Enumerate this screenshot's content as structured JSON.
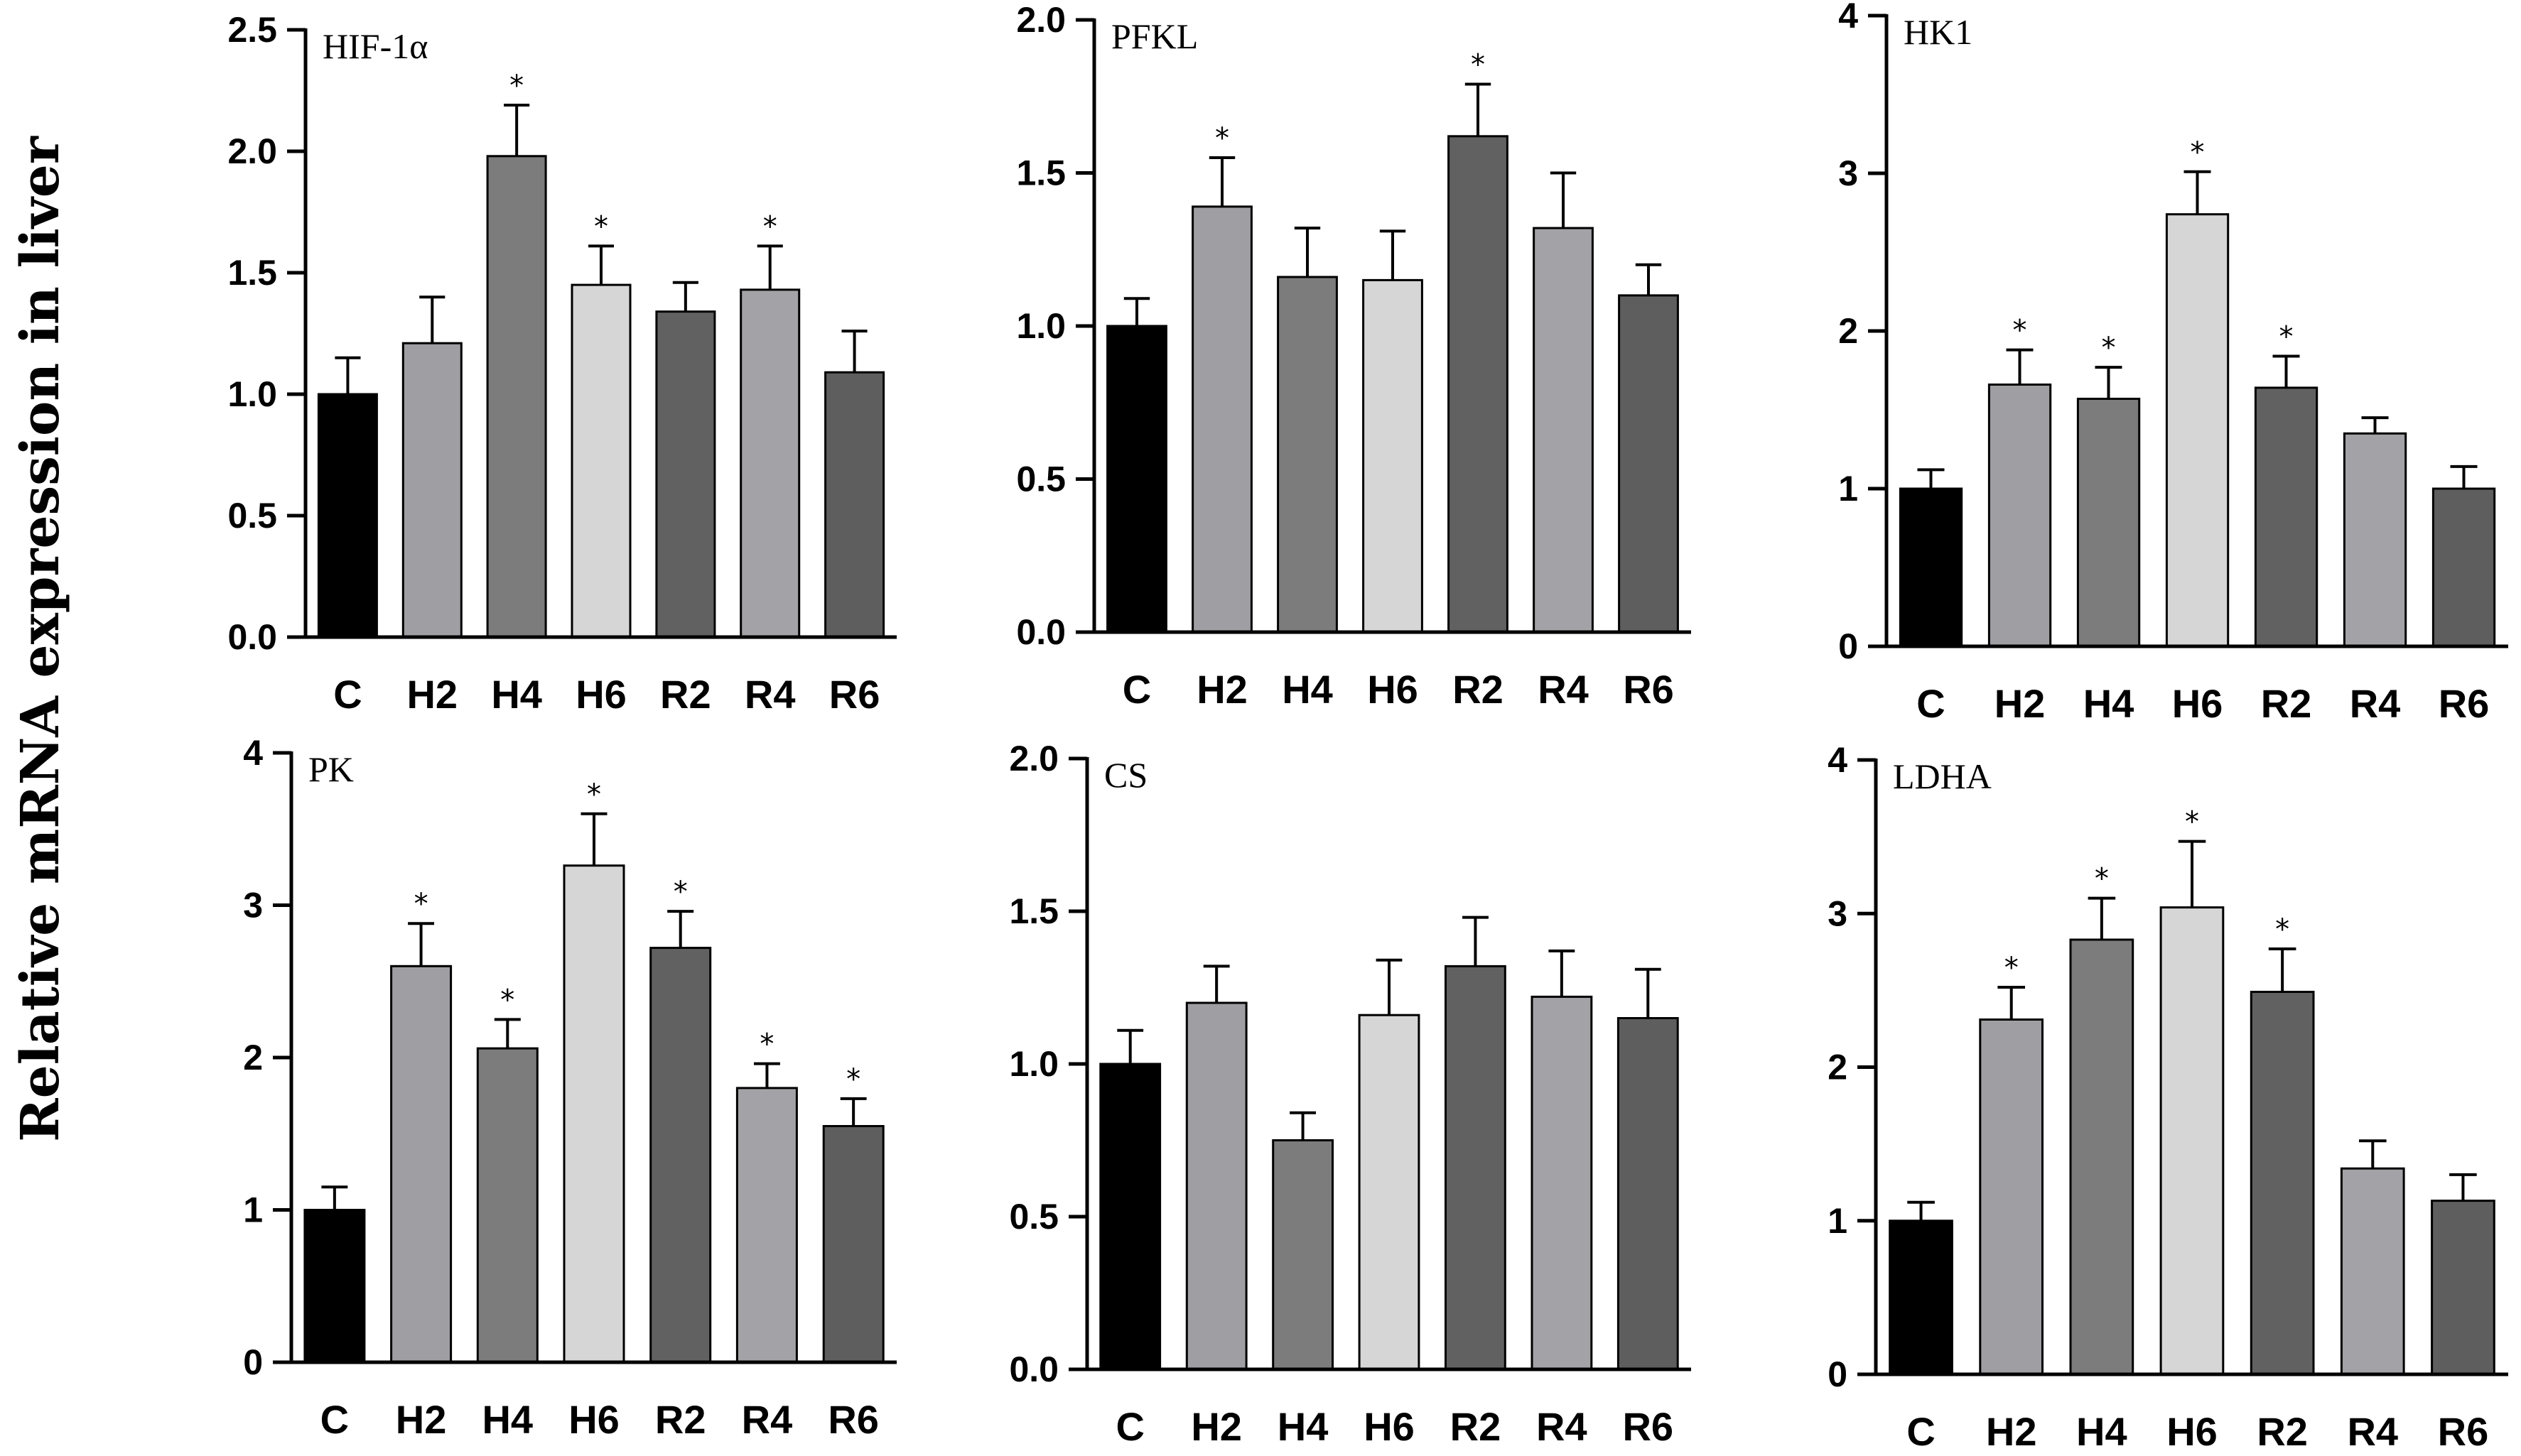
{
  "figure": {
    "ylabel": "Relative mRNA expression in liver",
    "bar_colors": [
      "#000000",
      "#9e9ea3",
      "#7c7c7c",
      "#d6d6d6",
      "#616161",
      "#a3a3a7",
      "#5e5e5e"
    ],
    "axis_color": "#000000",
    "significance_marker": "*"
  },
  "chart_data": [
    {
      "type": "bar",
      "title": "HIF-1α",
      "categories": [
        "C",
        "H2",
        "H4",
        "H6",
        "R2",
        "R4",
        "R6"
      ],
      "values": [
        1.0,
        1.21,
        1.98,
        1.45,
        1.34,
        1.43,
        1.09
      ],
      "errors": [
        0.15,
        0.19,
        0.21,
        0.16,
        0.12,
        0.18,
        0.17
      ],
      "significant": [
        false,
        false,
        true,
        true,
        false,
        true,
        false
      ],
      "ylim": [
        0,
        2.5
      ],
      "yticks": [
        0.0,
        0.5,
        1.0,
        1.5,
        2.0,
        2.5
      ],
      "ytick_labels": [
        "0.0",
        "0.5",
        "1.0",
        "1.5",
        "2.0",
        "2.5"
      ]
    },
    {
      "type": "bar",
      "title": "PFKL",
      "categories": [
        "C",
        "H2",
        "H4",
        "H6",
        "R2",
        "R4",
        "R6"
      ],
      "values": [
        1.0,
        1.39,
        1.16,
        1.15,
        1.62,
        1.32,
        1.1
      ],
      "errors": [
        0.09,
        0.16,
        0.16,
        0.16,
        0.17,
        0.18,
        0.1
      ],
      "significant": [
        false,
        true,
        false,
        false,
        true,
        false,
        false
      ],
      "ylim": [
        0,
        2.0
      ],
      "yticks": [
        0.0,
        0.5,
        1.0,
        1.5,
        2.0
      ],
      "ytick_labels": [
        "0.0",
        "0.5",
        "1.0",
        "1.5",
        "2.0"
      ]
    },
    {
      "type": "bar",
      "title": "HK1",
      "categories": [
        "C",
        "H2",
        "H4",
        "H6",
        "R2",
        "R4",
        "R6"
      ],
      "values": [
        1.0,
        1.66,
        1.57,
        2.74,
        1.64,
        1.35,
        1.0
      ],
      "errors": [
        0.12,
        0.22,
        0.2,
        0.27,
        0.2,
        0.1,
        0.14
      ],
      "significant": [
        false,
        true,
        true,
        true,
        true,
        false,
        false
      ],
      "ylim": [
        0,
        4
      ],
      "yticks": [
        0,
        1,
        2,
        3,
        4
      ],
      "ytick_labels": [
        "0",
        "1",
        "2",
        "3",
        "4"
      ]
    },
    {
      "type": "bar",
      "title": "PK",
      "categories": [
        "C",
        "H2",
        "H4",
        "H6",
        "R2",
        "R4",
        "R6"
      ],
      "values": [
        1.0,
        2.6,
        2.06,
        3.26,
        2.72,
        1.8,
        1.55
      ],
      "errors": [
        0.15,
        0.28,
        0.19,
        0.34,
        0.24,
        0.16,
        0.18
      ],
      "significant": [
        false,
        true,
        true,
        true,
        true,
        true,
        true
      ],
      "ylim": [
        0,
        4
      ],
      "yticks": [
        0,
        1,
        2,
        3,
        4
      ],
      "ytick_labels": [
        "0",
        "1",
        "2",
        "3",
        "4"
      ]
    },
    {
      "type": "bar",
      "title": "CS",
      "categories": [
        "C",
        "H2",
        "H4",
        "H6",
        "R2",
        "R4",
        "R6"
      ],
      "values": [
        1.0,
        1.2,
        0.75,
        1.16,
        1.32,
        1.22,
        1.15
      ],
      "errors": [
        0.11,
        0.12,
        0.09,
        0.18,
        0.16,
        0.15,
        0.16
      ],
      "significant": [
        false,
        false,
        false,
        false,
        false,
        false,
        false
      ],
      "ylim": [
        0,
        2.0
      ],
      "yticks": [
        0.0,
        0.5,
        1.0,
        1.5,
        2.0
      ],
      "ytick_labels": [
        "0.0",
        "0.5",
        "1.0",
        "1.5",
        "2.0"
      ]
    },
    {
      "type": "bar",
      "title": "LDHA",
      "categories": [
        "C",
        "H2",
        "H4",
        "H6",
        "R2",
        "R4",
        "R6"
      ],
      "values": [
        1.0,
        2.31,
        2.83,
        3.04,
        2.49,
        1.34,
        1.13
      ],
      "errors": [
        0.12,
        0.21,
        0.27,
        0.43,
        0.28,
        0.18,
        0.17
      ],
      "significant": [
        false,
        true,
        true,
        true,
        true,
        false,
        false
      ],
      "ylim": [
        0,
        4
      ],
      "yticks": [
        0,
        1,
        2,
        3,
        4
      ],
      "ytick_labels": [
        "0",
        "1",
        "2",
        "3",
        "4"
      ]
    }
  ]
}
